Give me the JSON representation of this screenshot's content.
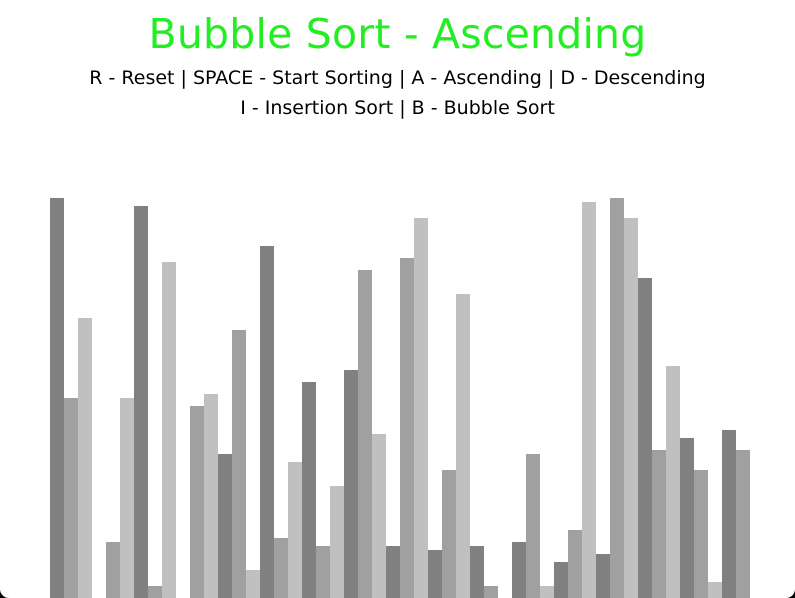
{
  "app": {
    "title": "Bubble Sort - Ascending",
    "controls_line_1": "R - Reset | SPACE - Start Sorting | A - Ascending | D - Descending",
    "controls_line_2": "I - Insertion Sort | B - Bubble Sort"
  },
  "colors": {
    "title": "#22ee22",
    "shades": [
      "#808080",
      "#a0a0a0",
      "#c0c0c0"
    ]
  },
  "bars": {
    "max_value": 100,
    "values": [
      100,
      50,
      70,
      0,
      14,
      50,
      98,
      3,
      84,
      0,
      48,
      51,
      36,
      67,
      7,
      88,
      15,
      34,
      54,
      13,
      28,
      57,
      82,
      41,
      13,
      85,
      95,
      12,
      32,
      76,
      13,
      3,
      0,
      14,
      36,
      3,
      9,
      17,
      99,
      11,
      100,
      95,
      80,
      37,
      58,
      40,
      32,
      4,
      42,
      37
    ]
  }
}
